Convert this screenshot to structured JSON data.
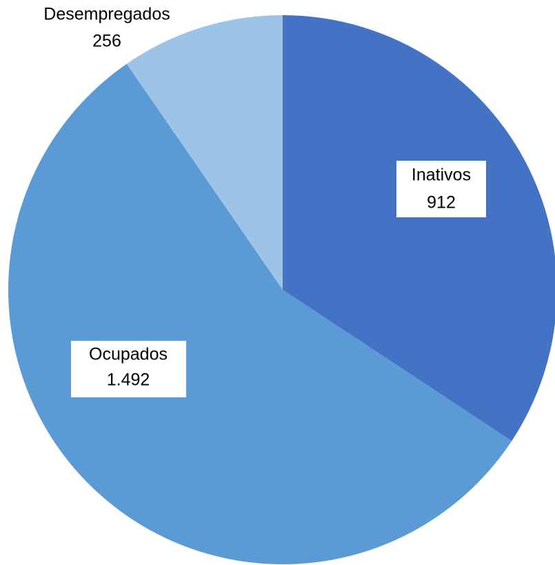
{
  "chart_data": {
    "type": "pie",
    "categories": [
      "Inativos",
      "Ocupados",
      "Desempregados"
    ],
    "values": [
      912,
      1492,
      256
    ],
    "value_labels": [
      "912",
      "1.492",
      "256"
    ],
    "colors": [
      "#4472c4",
      "#5b9bd5",
      "#9dc3e6"
    ]
  }
}
